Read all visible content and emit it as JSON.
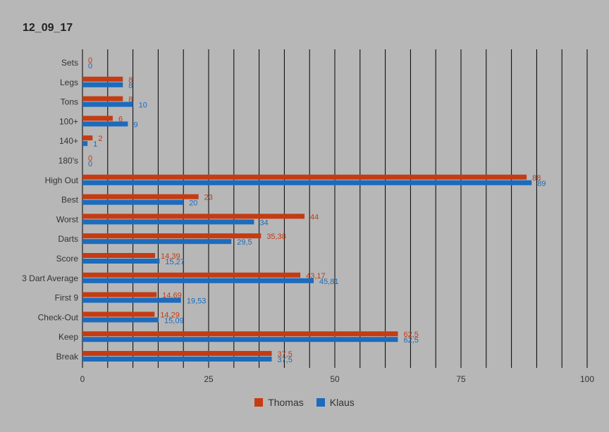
{
  "chart_data": {
    "type": "bar",
    "orientation": "horizontal",
    "title": "12_09_17",
    "categories": [
      "Sets",
      "Legs",
      "Tons",
      "100+",
      "140+",
      "180's",
      "High Out",
      "Best",
      "Worst",
      "Darts",
      "Score",
      "3 Dart Average",
      "First 9",
      "Check-Out",
      "Keep",
      "Break"
    ],
    "series": [
      {
        "name": "Thomas",
        "color": "#c53b12",
        "values": [
          0,
          8,
          8,
          6,
          2,
          0,
          88,
          23,
          44,
          35.38,
          14.39,
          43.17,
          14.69,
          14.29,
          62.5,
          37.5
        ],
        "labels": [
          "0",
          "8",
          "8",
          "6",
          "2",
          "0",
          "88",
          "23",
          "44",
          "35,38",
          "14,39",
          "43,17",
          "14,69",
          "14,29",
          "62,5",
          "37,5"
        ]
      },
      {
        "name": "Klaus",
        "color": "#1c6bbd",
        "values": [
          0,
          8,
          10,
          9,
          1,
          0,
          89,
          20,
          34,
          29.5,
          15.27,
          45.81,
          19.53,
          15.09,
          62.5,
          37.5
        ],
        "labels": [
          "0",
          "8",
          "10",
          "9",
          "1",
          "0",
          "89",
          "20",
          "34",
          "29,5",
          "15,27",
          "45,81",
          "19,53",
          "15,09",
          "62,5",
          "37,5"
        ]
      }
    ],
    "xlim": [
      0,
      100
    ],
    "xticks": [
      "0",
      "25",
      "50",
      "75",
      "100"
    ],
    "xtick_values": [
      0,
      25,
      50,
      75,
      100
    ],
    "grid": true,
    "gridline_color": "#000000",
    "legend_position": "bottom"
  }
}
